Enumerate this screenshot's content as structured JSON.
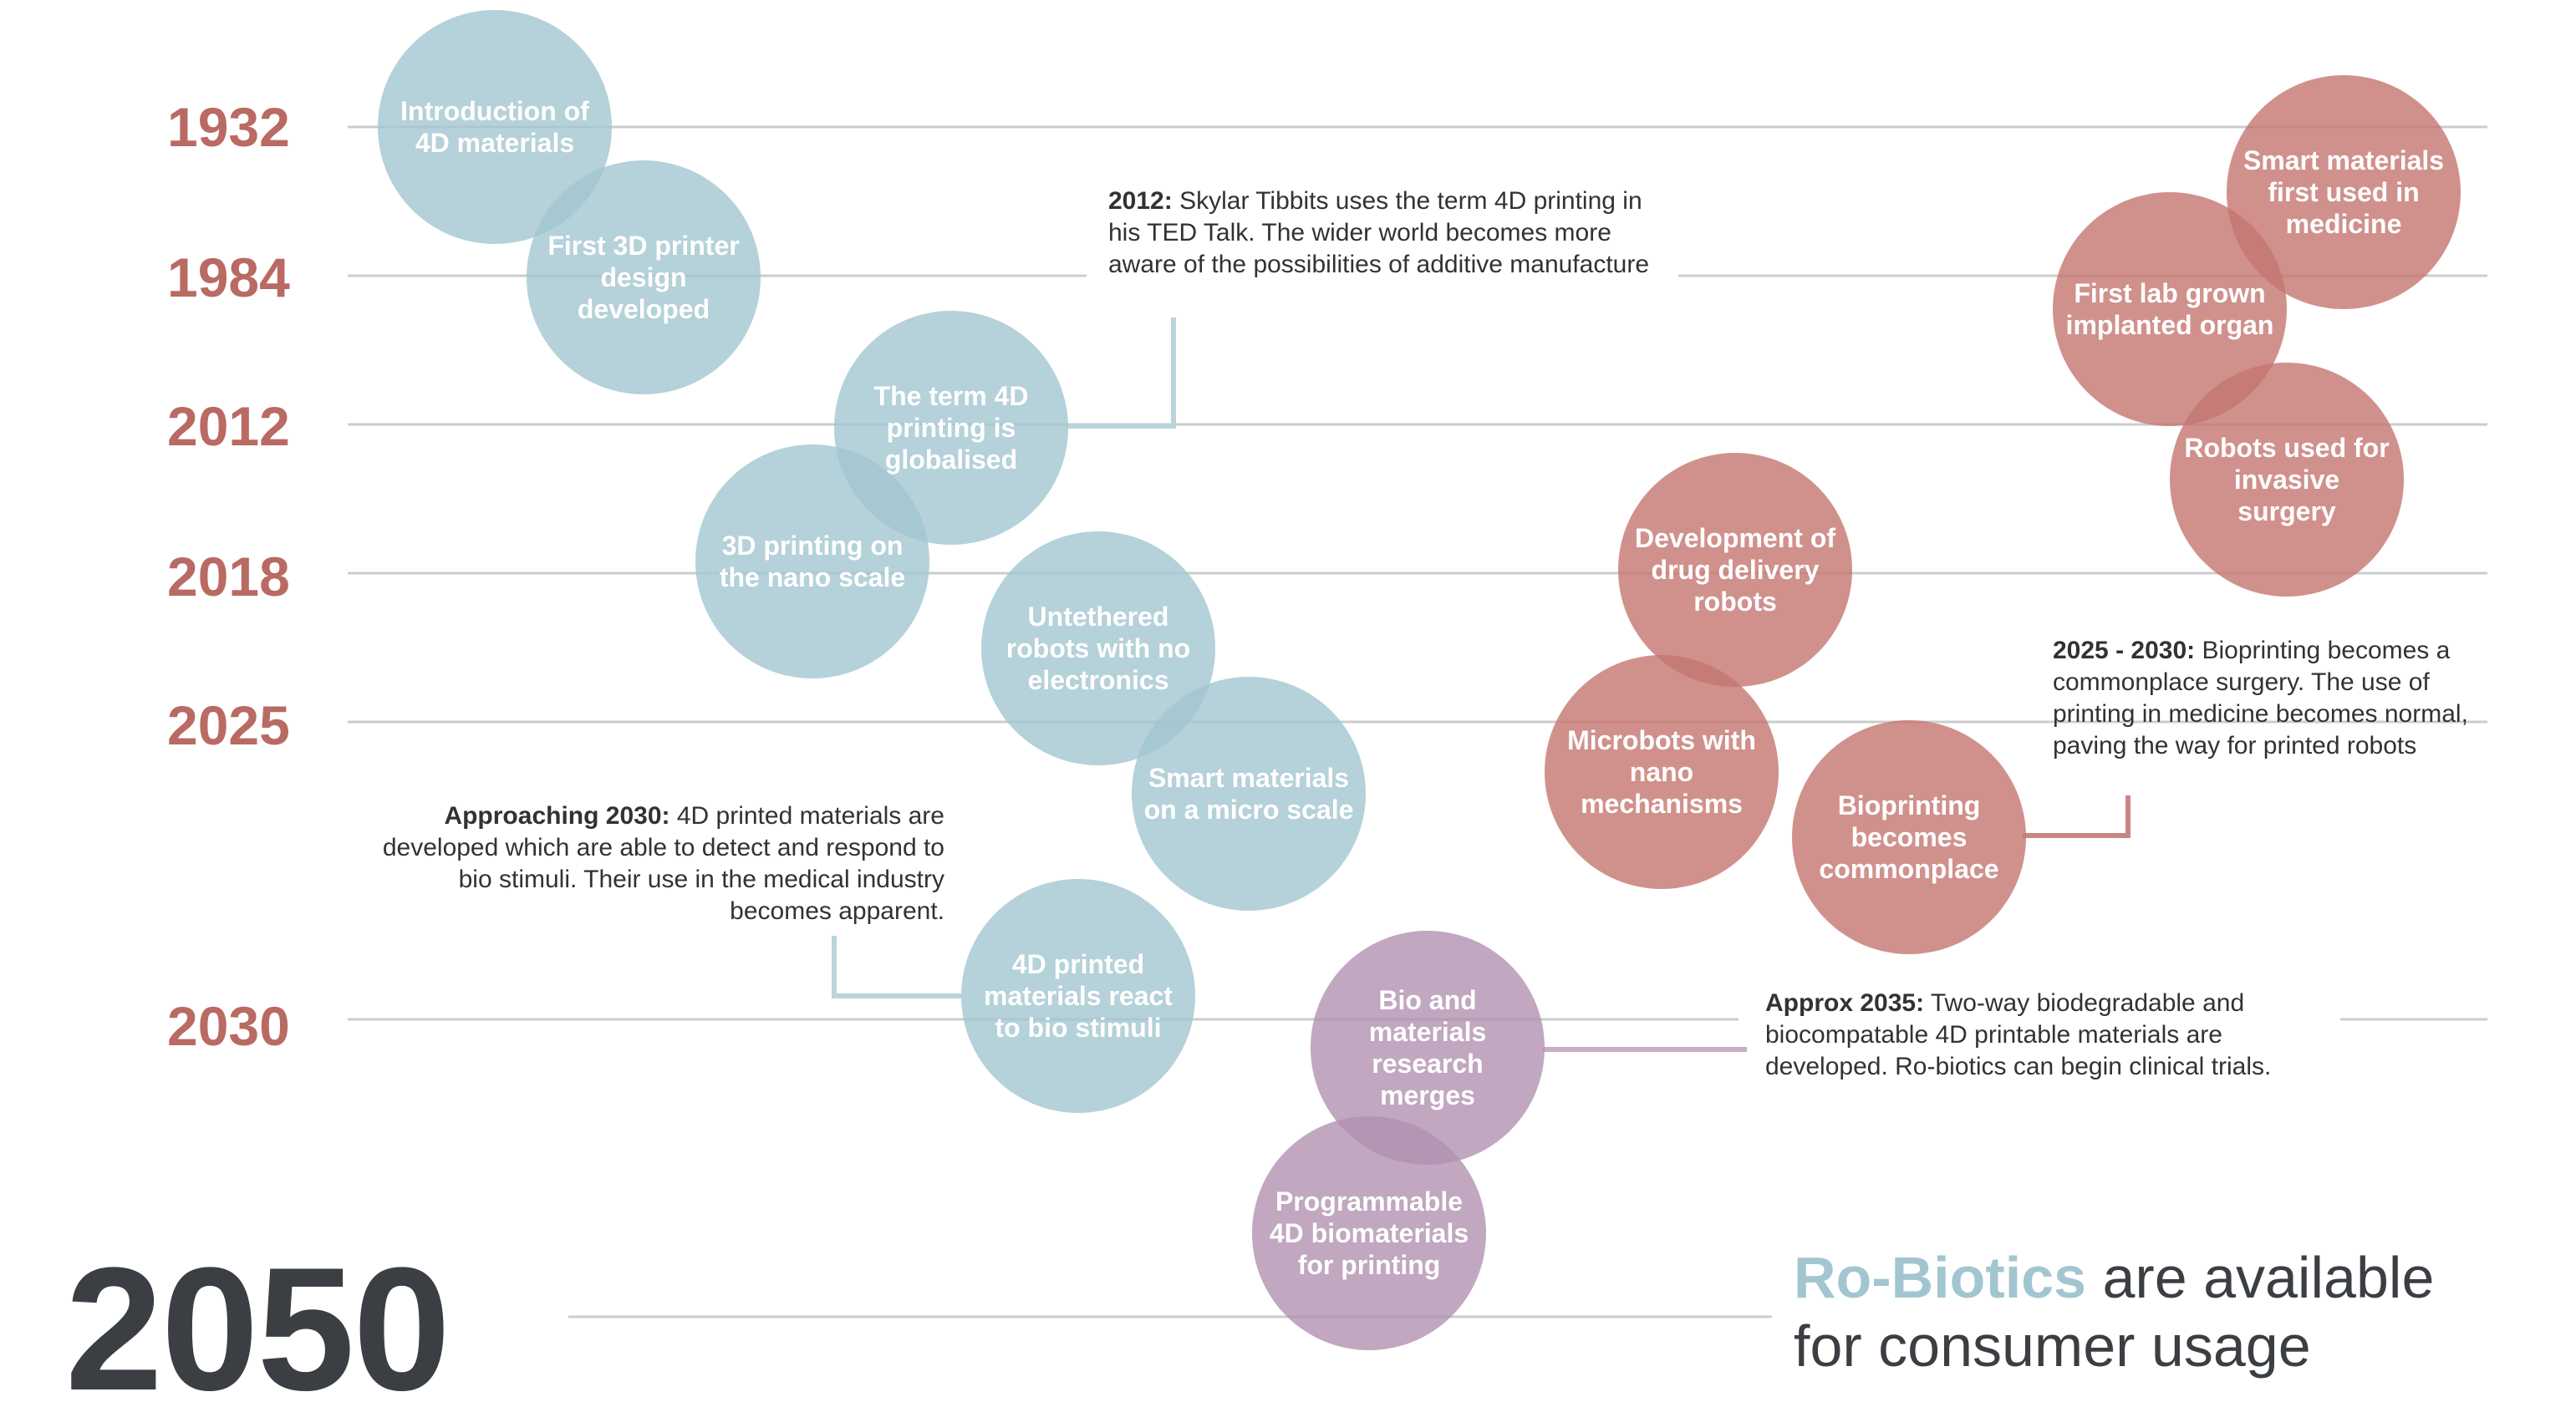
{
  "colors": {
    "year": "#b96a62",
    "big_year": "#3b3f43",
    "gridline": "#cccccc",
    "blue": "#a2c6cf",
    "red": "#c47670",
    "purple": "#b291b0",
    "brand": "#a2c6cf"
  },
  "years": [
    "1932",
    "1984",
    "2012",
    "2018",
    "2025",
    "2030"
  ],
  "final_year": "2050",
  "bubbles": [
    {
      "text": "Introduction of 4D materials",
      "color": "blue"
    },
    {
      "text": "First 3D printer design developed",
      "color": "blue"
    },
    {
      "text": "The term 4D printing is globalised",
      "color": "blue"
    },
    {
      "text": "3D printing on the nano scale",
      "color": "blue"
    },
    {
      "text": "Untethered robots with no electronics",
      "color": "blue"
    },
    {
      "text": "Smart materials on a micro scale",
      "color": "blue"
    },
    {
      "text": "4D printed materials react to bio stimuli",
      "color": "blue"
    },
    {
      "text": "Bio and materials research merges",
      "color": "purple"
    },
    {
      "text": "Programmable 4D biomaterials for printing",
      "color": "purple"
    },
    {
      "text": "Development of drug delivery robots",
      "color": "red"
    },
    {
      "text": "Microbots with nano mechanisms",
      "color": "red"
    },
    {
      "text": "Bioprinting becomes commonplace",
      "color": "red"
    },
    {
      "text": "Smart materials first used in medicine",
      "color": "red"
    },
    {
      "text": "First lab grown implanted organ",
      "color": "red"
    },
    {
      "text": "Robots used for invasive surgery",
      "color": "red"
    }
  ],
  "notes": {
    "n2012": {
      "head": "2012:",
      "body": "Skylar Tibbits uses the term 4D printing in his TED Talk. The wider world becomes more aware of the possibilities of additive manufacture"
    },
    "n2030": {
      "head": "Approaching 2030:",
      "body": "4D printed materials are developed which are able to detect and respond to bio stimuli. Their use in the medical industry becomes apparent."
    },
    "n2025": {
      "head": "2025 - 2030:",
      "body": "Bioprinting becomes a commonplace surgery. The use of printing in medicine becomes normal, paving the way for printed robots"
    },
    "n2035": {
      "head": "Approx 2035:",
      "body": "Two-way biodegradable and biocompatable 4D printable materials are developed. Ro-biotics can begin clinical trials."
    }
  },
  "final_statement": {
    "brand": "Ro-Biotics",
    "rest_line1": " are available",
    "line2": "for consumer usage"
  }
}
